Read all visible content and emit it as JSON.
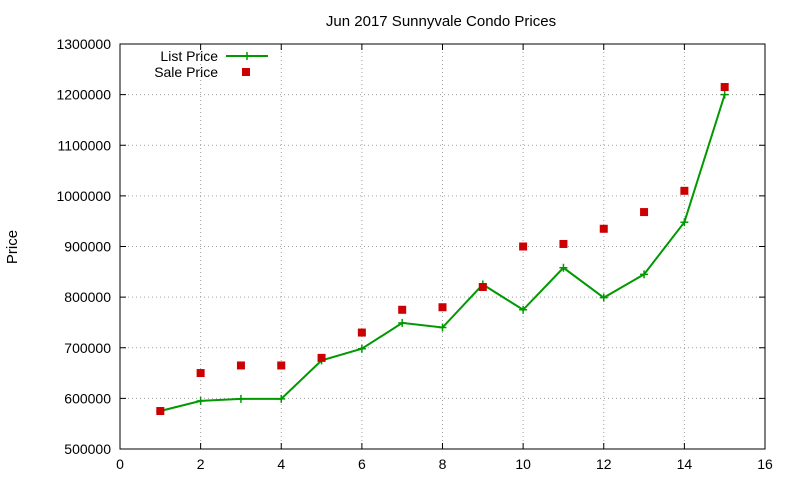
{
  "chart_data": {
    "type": "line",
    "title": "Jun 2017 Sunnyvale Condo Prices",
    "xlabel": "",
    "ylabel": "Price",
    "xlim": [
      0,
      16
    ],
    "ylim": [
      500000,
      1300000
    ],
    "xticks": [
      0,
      2,
      4,
      6,
      8,
      10,
      12,
      14,
      16
    ],
    "yticks": [
      500000,
      600000,
      700000,
      800000,
      900000,
      1000000,
      1100000,
      1200000,
      1300000
    ],
    "grid": true,
    "legend_position": "top-left",
    "x": [
      1,
      2,
      3,
      4,
      5,
      6,
      7,
      8,
      9,
      10,
      11,
      12,
      13,
      14,
      15
    ],
    "series": [
      {
        "name": "List Price",
        "style": "line-plus",
        "color": "#009900",
        "values": [
          575000,
          595000,
          599000,
          599000,
          675000,
          698000,
          749000,
          740000,
          825000,
          775000,
          858000,
          799000,
          845000,
          948000,
          1200000
        ]
      },
      {
        "name": "Sale Price",
        "style": "square",
        "color": "#cc0000",
        "values": [
          575000,
          650000,
          665000,
          665000,
          680000,
          730000,
          775000,
          780000,
          820000,
          900000,
          905000,
          935000,
          968000,
          1010000,
          1215000
        ]
      }
    ]
  }
}
